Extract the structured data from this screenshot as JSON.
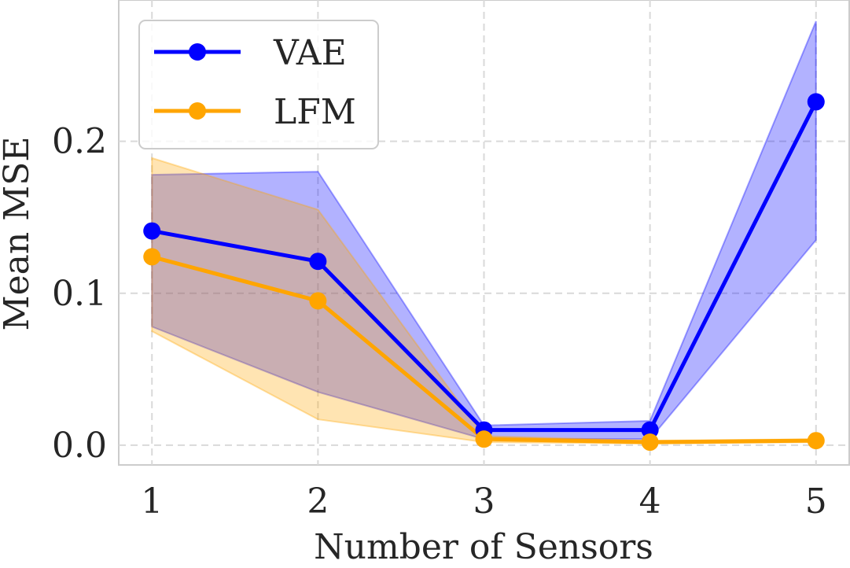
{
  "chart_data": {
    "type": "line",
    "title": "",
    "xlabel": "Number of Sensors",
    "ylabel": "Mean MSE",
    "x": [
      1,
      2,
      3,
      4,
      5
    ],
    "xticks": [
      "1",
      "2",
      "3",
      "4",
      "5"
    ],
    "yticks": [
      0.0,
      0.1,
      0.2
    ],
    "ytick_labels": [
      "0.0",
      "0.1",
      "0.2"
    ],
    "xlim": [
      0.8,
      5.2
    ],
    "ylim": [
      -0.013,
      0.293
    ],
    "grid": true,
    "legend_position": "top-left",
    "series": [
      {
        "name": "VAE",
        "color": "#0000ff",
        "values": [
          0.141,
          0.121,
          0.01,
          0.01,
          0.226
        ],
        "lower": [
          0.078,
          0.035,
          0.004,
          0.004,
          0.135
        ],
        "upper": [
          0.178,
          0.18,
          0.013,
          0.016,
          0.279
        ]
      },
      {
        "name": "LFM",
        "color": "#ffa500",
        "values": [
          0.124,
          0.095,
          0.004,
          0.002,
          0.003
        ],
        "lower": [
          0.075,
          0.017,
          0.002,
          0.001,
          0.002
        ],
        "upper": [
          0.189,
          0.155,
          0.006,
          0.003,
          0.004
        ]
      }
    ]
  }
}
